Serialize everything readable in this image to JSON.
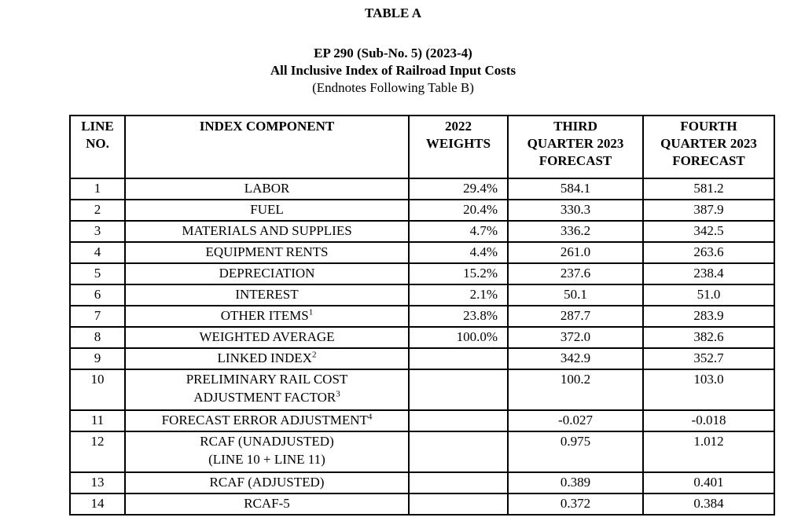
{
  "header": {
    "table_label": "TABLE A",
    "docket": "EP 290 (Sub-No. 5) (2023-4)",
    "doc_title": "All Inclusive Index of Railroad Input Costs",
    "endnote_ref": "(Endnotes Following Table B)"
  },
  "table": {
    "columns": [
      {
        "id": "line_no",
        "lines": [
          "LINE",
          "NO."
        ]
      },
      {
        "id": "component",
        "lines": [
          "INDEX COMPONENT"
        ]
      },
      {
        "id": "weight",
        "lines": [
          "2022",
          "WEIGHTS"
        ]
      },
      {
        "id": "q3",
        "lines": [
          "THIRD",
          "QUARTER 2023",
          "FORECAST"
        ]
      },
      {
        "id": "q4",
        "lines": [
          "FOURTH",
          "QUARTER 2023",
          "FORECAST"
        ]
      }
    ],
    "rows": [
      {
        "line_no": "1",
        "component_lines": [
          "LABOR"
        ],
        "superscript": "",
        "weight": "29.4%",
        "q3": "584.1",
        "q4": "581.2"
      },
      {
        "line_no": "2",
        "component_lines": [
          "FUEL"
        ],
        "superscript": "",
        "weight": "20.4%",
        "q3": "330.3",
        "q4": "387.9"
      },
      {
        "line_no": "3",
        "component_lines": [
          "MATERIALS AND SUPPLIES"
        ],
        "superscript": "",
        "weight": "4.7%",
        "q3": "336.2",
        "q4": "342.5"
      },
      {
        "line_no": "4",
        "component_lines": [
          "EQUIPMENT RENTS"
        ],
        "superscript": "",
        "weight": "4.4%",
        "q3": "261.0",
        "q4": "263.6"
      },
      {
        "line_no": "5",
        "component_lines": [
          "DEPRECIATION"
        ],
        "superscript": "",
        "weight": "15.2%",
        "q3": "237.6",
        "q4": "238.4"
      },
      {
        "line_no": "6",
        "component_lines": [
          "INTEREST"
        ],
        "superscript": "",
        "weight": "2.1%",
        "q3": "50.1",
        "q4": "51.0"
      },
      {
        "line_no": "7",
        "component_lines": [
          "OTHER ITEMS"
        ],
        "superscript": "1",
        "weight": "23.8%",
        "q3": "287.7",
        "q4": "283.9"
      },
      {
        "line_no": "8",
        "component_lines": [
          "WEIGHTED AVERAGE"
        ],
        "superscript": "",
        "weight": "100.0%",
        "q3": "372.0",
        "q4": "382.6"
      },
      {
        "line_no": "9",
        "component_lines": [
          "LINKED INDEX"
        ],
        "superscript": "2",
        "weight": "",
        "q3": "342.9",
        "q4": "352.7"
      },
      {
        "line_no": "10",
        "component_lines": [
          "PRELIMINARY RAIL COST",
          "ADJUSTMENT FACTOR"
        ],
        "superscript": "3",
        "weight": "",
        "q3": "100.2",
        "q4": "103.0"
      },
      {
        "line_no": "11",
        "component_lines": [
          "FORECAST ERROR ADJUSTMENT"
        ],
        "superscript": "4",
        "weight": "",
        "q3": "-0.027",
        "q4": "-0.018"
      },
      {
        "line_no": "12",
        "component_lines": [
          "RCAF (UNADJUSTED)",
          "(LINE 10 + LINE 11)"
        ],
        "superscript": "",
        "weight": "",
        "q3": "0.975",
        "q4": "1.012"
      },
      {
        "line_no": "13",
        "component_lines": [
          "RCAF (ADJUSTED)"
        ],
        "superscript": "",
        "weight": "",
        "q3": "0.389",
        "q4": "0.401"
      },
      {
        "line_no": "14",
        "component_lines": [
          "RCAF-5"
        ],
        "superscript": "",
        "weight": "",
        "q3": "0.372",
        "q4": "0.384"
      }
    ]
  },
  "colors": {
    "text": "#000000",
    "border": "#000000",
    "background": "#ffffff"
  }
}
